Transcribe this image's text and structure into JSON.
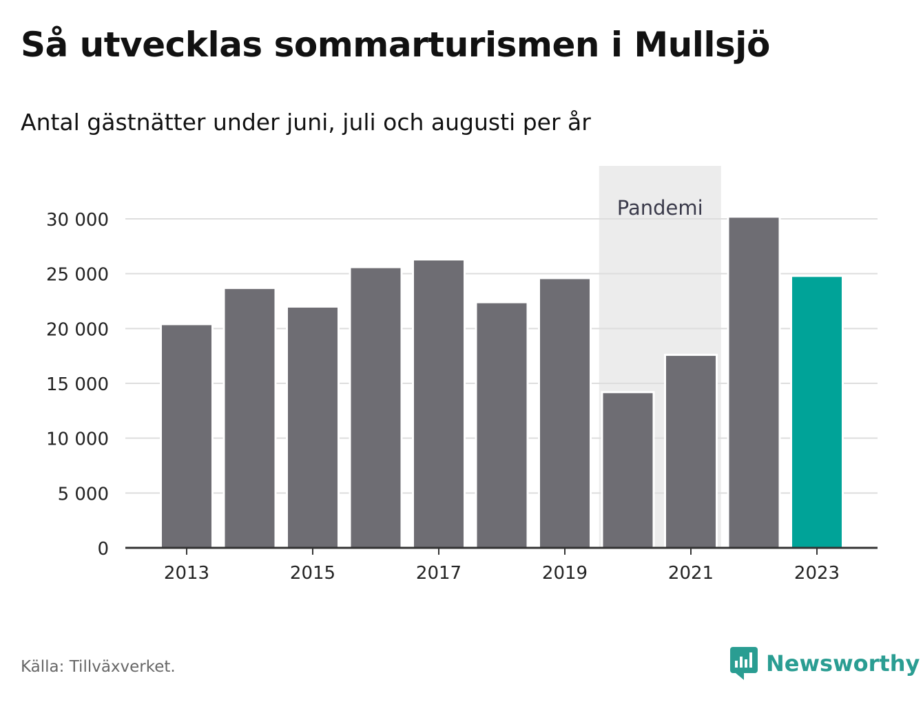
{
  "title": "Så utvecklas sommarturismen i Mullsjö",
  "subtitle": "Antal gästnätter under juni, juli och augusti per år",
  "source": "Källa: Tillväxverket.",
  "brand": {
    "name": "Newsworthy",
    "icon": "newsworthy-logo-icon",
    "color": "#2a9d92"
  },
  "colors": {
    "bar": "#6e6d73",
    "highlight": "#00a398",
    "shade": "#ececec",
    "grid": "#dddddd",
    "axis": "#333333"
  },
  "chart_data": {
    "type": "bar",
    "categories": [
      "2013",
      "2014",
      "2015",
      "2016",
      "2017",
      "2018",
      "2019",
      "2020",
      "2021",
      "2022",
      "2023"
    ],
    "values": [
      20400,
      23700,
      22000,
      25600,
      26300,
      22400,
      24600,
      14200,
      17600,
      30200,
      24800
    ],
    "highlight_category": "2023",
    "x_tick_labels": [
      "2013",
      "2015",
      "2017",
      "2019",
      "2021",
      "2023"
    ],
    "y_ticks": [
      0,
      5000,
      10000,
      15000,
      20000,
      25000,
      30000
    ],
    "y_tick_labels": [
      "0",
      "5 000",
      "10 000",
      "15 000",
      "20 000",
      "25 000",
      "30 000"
    ],
    "ylim": [
      0,
      30000
    ],
    "grid": true,
    "annotation": {
      "label": "Pandemi",
      "from": "2020",
      "to": "2021"
    },
    "xlabel": "",
    "ylabel": ""
  }
}
